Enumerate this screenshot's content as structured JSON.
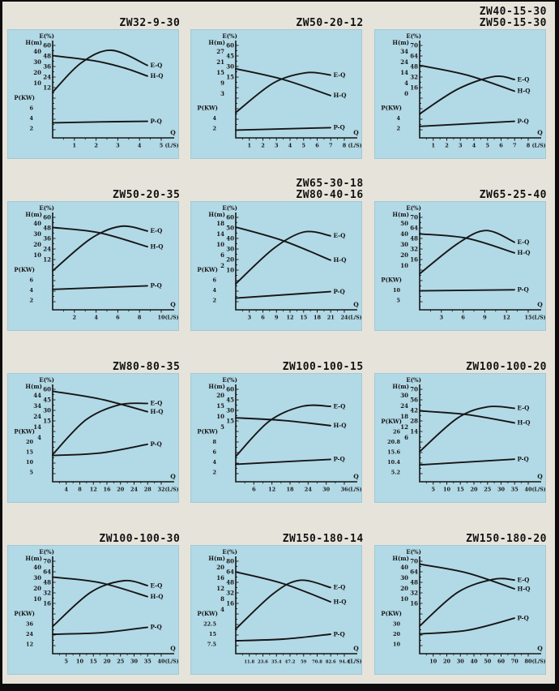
{
  "page": {
    "background": "#e6e4da",
    "panel_color": "#b2d9e6",
    "ink_color": "#161616",
    "frame_color": "#0d0d0d",
    "series_note": "curve points are normalized: x = 0..1 of Q-axis span, y = 0..1 of plot height (bottom to top)"
  },
  "chart_data": [
    {
      "type": "line",
      "title_lines": [
        "ZW32-9-30"
      ],
      "e_axis": {
        "label": "E(%)",
        "ticks": [
          "60",
          "48",
          "36",
          "24",
          "12"
        ]
      },
      "h_axis": {
        "label": "H(m)",
        "ticks": [
          "40",
          "30",
          "20",
          "10"
        ]
      },
      "p_axis": {
        "label": "P(KW)",
        "ticks": [
          "6",
          "4",
          "2"
        ]
      },
      "x_axis": {
        "q": "Q",
        "unit": "(L/S)",
        "ticks": [
          "1",
          "2",
          "3",
          "4",
          "5"
        ]
      },
      "series": [
        {
          "name": "H-Q",
          "pts": [
            [
              0,
              0.845
            ],
            [
              0.45,
              0.79
            ],
            [
              0.75,
              0.72
            ],
            [
              1,
              0.635
            ]
          ]
        },
        {
          "name": "E-Q",
          "pts": [
            [
              0,
              0.47
            ],
            [
              0.3,
              0.77
            ],
            [
              0.62,
              0.9
            ],
            [
              1,
              0.745
            ]
          ]
        },
        {
          "name": "P-Q",
          "pts": [
            [
              0,
              0.155
            ],
            [
              0.55,
              0.165
            ],
            [
              1,
              0.17
            ]
          ]
        }
      ]
    },
    {
      "type": "line",
      "title_lines": [
        "ZW50-20-12"
      ],
      "e_axis": {
        "label": "E(%)",
        "ticks": [
          "60",
          "45",
          "30",
          "15"
        ]
      },
      "h_axis": {
        "label": "H(m)",
        "ticks": [
          "27",
          "21",
          "15",
          "9",
          "3"
        ]
      },
      "p_axis": {
        "label": "P(KW)",
        "ticks": [
          "4",
          "2"
        ]
      },
      "x_axis": {
        "q": "Q",
        "unit": "(L/S)",
        "ticks": [
          "1",
          "2",
          "3",
          "4",
          "5",
          "6",
          "7",
          "8"
        ]
      },
      "series": [
        {
          "name": "H-Q",
          "pts": [
            [
              0,
              0.71
            ],
            [
              0.5,
              0.6
            ],
            [
              1,
              0.435
            ]
          ]
        },
        {
          "name": "E-Q",
          "pts": [
            [
              0,
              0.26
            ],
            [
              0.4,
              0.565
            ],
            [
              0.75,
              0.67
            ],
            [
              1,
              0.645
            ]
          ]
        },
        {
          "name": "P-Q",
          "pts": [
            [
              0,
              0.08
            ],
            [
              1,
              0.105
            ]
          ]
        }
      ]
    },
    {
      "type": "line",
      "title_lines": [
        "ZW40-15-30",
        "ZW50-15-30"
      ],
      "e_axis": {
        "label": "E(%)",
        "ticks": [
          "70",
          "64",
          "48",
          "32",
          "16"
        ]
      },
      "h_axis": {
        "label": "H(m)",
        "ticks": [
          "34",
          "24",
          "14",
          "4",
          "0"
        ]
      },
      "p_axis": {
        "label": "P(KW)",
        "ticks": [
          "4",
          "2"
        ]
      },
      "x_axis": {
        "q": "Q",
        "unit": "(L/S)",
        "ticks": [
          "1",
          "2",
          "3",
          "4",
          "5",
          "6",
          "7",
          "8"
        ]
      },
      "series": [
        {
          "name": "H-Q",
          "pts": [
            [
              0,
              0.745
            ],
            [
              0.5,
              0.645
            ],
            [
              1,
              0.48
            ]
          ]
        },
        {
          "name": "E-Q",
          "pts": [
            [
              0,
              0.247
            ],
            [
              0.4,
              0.5
            ],
            [
              0.78,
              0.63
            ],
            [
              1,
              0.6
            ]
          ]
        },
        {
          "name": "P-Q",
          "pts": [
            [
              0,
              0.118
            ],
            [
              1,
              0.17
            ]
          ]
        }
      ]
    },
    {
      "type": "line",
      "title_lines": [
        "ZW50-20-35"
      ],
      "e_axis": {
        "label": "E(%)",
        "ticks": [
          "60",
          "48",
          "36",
          "24",
          "12"
        ]
      },
      "h_axis": {
        "label": "H(m)",
        "ticks": [
          "40",
          "30",
          "20",
          "10"
        ]
      },
      "p_axis": {
        "label": "P(KW)",
        "ticks": [
          "6",
          "4",
          "2"
        ]
      },
      "x_axis": {
        "q": "Q",
        "unit": "(L/S)",
        "ticks": [
          "2",
          "4",
          "6",
          "8",
          "10"
        ]
      },
      "series": [
        {
          "name": "H-Q",
          "pts": [
            [
              0,
              0.846
            ],
            [
              0.5,
              0.79
            ],
            [
              1,
              0.648
            ]
          ]
        },
        {
          "name": "E-Q",
          "pts": [
            [
              0,
              0.4
            ],
            [
              0.4,
              0.73
            ],
            [
              0.72,
              0.858
            ],
            [
              1,
              0.81
            ]
          ]
        },
        {
          "name": "P-Q",
          "pts": [
            [
              0,
              0.21
            ],
            [
              1,
              0.247
            ]
          ]
        }
      ]
    },
    {
      "type": "line",
      "title_lines": [
        "ZW65-30-18",
        "ZW80-40-16"
      ],
      "e_axis": {
        "label": "E(%)",
        "ticks": [
          "60",
          "50",
          "40",
          "30",
          "20",
          "10"
        ]
      },
      "h_axis": {
        "label": "H(m)",
        "ticks": [
          "18",
          "14",
          "10",
          "6",
          "2"
        ]
      },
      "p_axis": {
        "label": "P(KW)",
        "ticks": [
          "6",
          "4",
          "2"
        ]
      },
      "x_axis": {
        "q": "Q",
        "unit": "(L/S)",
        "ticks": [
          "3",
          "6",
          "9",
          "12",
          "15",
          "18",
          "21",
          "24"
        ]
      },
      "series": [
        {
          "name": "H-Q",
          "pts": [
            [
              0,
              0.85
            ],
            [
              0.5,
              0.71
            ],
            [
              1,
              0.51
            ]
          ]
        },
        {
          "name": "E-Q",
          "pts": [
            [
              0,
              0.267
            ],
            [
              0.4,
              0.63
            ],
            [
              0.72,
              0.8
            ],
            [
              1,
              0.76
            ]
          ]
        },
        {
          "name": "P-Q",
          "pts": [
            [
              0,
              0.12
            ],
            [
              1,
              0.187
            ]
          ]
        }
      ]
    },
    {
      "type": "line",
      "title_lines": [
        "ZW65-25-40"
      ],
      "e_axis": {
        "label": "E(%)",
        "ticks": [
          "70",
          "64",
          "48",
          "32",
          "16"
        ]
      },
      "h_axis": {
        "label": "H(m)",
        "ticks": [
          "50",
          "40",
          "30",
          "20",
          "10"
        ]
      },
      "p_axis": {
        "label": "P(KW)",
        "ticks": [
          "10",
          "5"
        ]
      },
      "x_axis": {
        "q": "Q",
        "unit": "(L/S)",
        "ticks": [
          "3",
          "6",
          "9",
          "12",
          "15"
        ]
      },
      "series": [
        {
          "name": "H-Q",
          "pts": [
            [
              0,
              0.78
            ],
            [
              0.5,
              0.735
            ],
            [
              1,
              0.585
            ]
          ]
        },
        {
          "name": "E-Q",
          "pts": [
            [
              0,
              0.37
            ],
            [
              0.4,
              0.68
            ],
            [
              0.7,
              0.815
            ],
            [
              1,
              0.695
            ]
          ]
        },
        {
          "name": "P-Q",
          "pts": [
            [
              0,
              0.195
            ],
            [
              1,
              0.206
            ]
          ]
        }
      ]
    },
    {
      "type": "line",
      "title_lines": [
        "ZW80-80-35"
      ],
      "e_axis": {
        "label": "E(%)",
        "ticks": [
          "60",
          "45",
          "30",
          "15"
        ]
      },
      "h_axis": {
        "label": "H(m)",
        "ticks": [
          "44",
          "34",
          "24",
          "14",
          "4"
        ]
      },
      "p_axis": {
        "label": "P(KW)",
        "ticks": [
          "20",
          "15",
          "10",
          "5"
        ]
      },
      "x_axis": {
        "q": "Q",
        "unit": "(L/S)",
        "ticks": [
          "4",
          "8",
          "12",
          "16",
          "20",
          "24",
          "28",
          "32"
        ]
      },
      "series": [
        {
          "name": "H-Q",
          "pts": [
            [
              0,
              0.93
            ],
            [
              0.5,
              0.85
            ],
            [
              1,
              0.72
            ]
          ]
        },
        {
          "name": "E-Q",
          "pts": [
            [
              0,
              0.28
            ],
            [
              0.35,
              0.635
            ],
            [
              0.7,
              0.79
            ],
            [
              1,
              0.805
            ]
          ]
        },
        {
          "name": "P-Q",
          "pts": [
            [
              0,
              0.27
            ],
            [
              0.5,
              0.295
            ],
            [
              1,
              0.385
            ]
          ]
        }
      ]
    },
    {
      "type": "line",
      "title_lines": [
        "ZW100-100-15"
      ],
      "e_axis": {
        "label": "E(%)",
        "ticks": [
          "60",
          "45",
          "30",
          "15"
        ]
      },
      "h_axis": {
        "label": "H(m)",
        "ticks": [
          "20",
          "15",
          "10",
          "5"
        ]
      },
      "p_axis": {
        "label": "P(KW)",
        "ticks": [
          "8",
          "6",
          "4",
          "2"
        ]
      },
      "x_axis": {
        "q": "Q",
        "unit": "(L/S)",
        "ticks": [
          "6",
          "12",
          "18",
          "24",
          "30",
          "36"
        ]
      },
      "series": [
        {
          "name": "H-Q",
          "pts": [
            [
              0,
              0.657
            ],
            [
              0.5,
              0.63
            ],
            [
              1,
              0.577
            ]
          ]
        },
        {
          "name": "E-Q",
          "pts": [
            [
              0,
              0.26
            ],
            [
              0.35,
              0.62
            ],
            [
              0.7,
              0.775
            ],
            [
              1,
              0.775
            ]
          ]
        },
        {
          "name": "P-Q",
          "pts": [
            [
              0,
              0.18
            ],
            [
              1,
              0.23
            ]
          ]
        }
      ]
    },
    {
      "type": "line",
      "title_lines": [
        "ZW100-100-20"
      ],
      "e_axis": {
        "label": "E(%)",
        "ticks": [
          "70",
          "56",
          "42",
          "28",
          "14"
        ]
      },
      "h_axis": {
        "label": "H(m)",
        "ticks": [
          "30",
          "24",
          "18",
          "12",
          "6"
        ]
      },
      "p_axis": {
        "label": "P(KW)",
        "ticks": [
          "26",
          "20.8",
          "15.6",
          "10.4",
          "5.2"
        ]
      },
      "x_axis": {
        "q": "Q",
        "unit": "(L/S)",
        "ticks": [
          "5",
          "10",
          "15",
          "20",
          "25",
          "30",
          "35",
          "40"
        ]
      },
      "series": [
        {
          "name": "H-Q",
          "pts": [
            [
              0,
              0.728
            ],
            [
              0.5,
              0.69
            ],
            [
              1,
              0.605
            ]
          ]
        },
        {
          "name": "E-Q",
          "pts": [
            [
              0,
              0.31
            ],
            [
              0.4,
              0.655
            ],
            [
              0.72,
              0.77
            ],
            [
              1,
              0.755
            ]
          ]
        },
        {
          "name": "P-Q",
          "pts": [
            [
              0,
              0.173
            ],
            [
              1,
              0.232
            ]
          ]
        }
      ]
    },
    {
      "type": "line",
      "title_lines": [
        "ZW100-100-30"
      ],
      "e_axis": {
        "label": "E(%)",
        "ticks": [
          "70",
          "64",
          "48",
          "32",
          "16"
        ]
      },
      "h_axis": {
        "label": "H(m)",
        "ticks": [
          "40",
          "30",
          "20",
          "10"
        ]
      },
      "p_axis": {
        "label": "P(KW)",
        "ticks": [
          "36",
          "24",
          "12"
        ]
      },
      "x_axis": {
        "q": "Q",
        "unit": "(L/S)",
        "ticks": [
          "5",
          "10",
          "15",
          "20",
          "25",
          "30",
          "35",
          "40"
        ]
      },
      "series": [
        {
          "name": "H-Q",
          "pts": [
            [
              0,
              0.787
            ],
            [
              0.5,
              0.73
            ],
            [
              1,
              0.587
            ]
          ]
        },
        {
          "name": "E-Q",
          "pts": [
            [
              0,
              0.28
            ],
            [
              0.4,
              0.63
            ],
            [
              0.75,
              0.75
            ],
            [
              1,
              0.7
            ]
          ]
        },
        {
          "name": "P-Q",
          "pts": [
            [
              0,
              0.2
            ],
            [
              0.5,
              0.215
            ],
            [
              1,
              0.272
            ]
          ]
        }
      ]
    },
    {
      "type": "line",
      "title_lines": [
        "ZW150-180-14"
      ],
      "e_axis": {
        "label": "E(%)",
        "ticks": [
          "80",
          "64",
          "48",
          "32",
          "16"
        ]
      },
      "h_axis": {
        "label": "H(m)",
        "ticks": [
          "20",
          "16",
          "12",
          "8",
          "4"
        ]
      },
      "p_axis": {
        "label": "P(KW)",
        "ticks": [
          "22.5",
          "15",
          "7.5"
        ]
      },
      "x_axis": {
        "q": "Q",
        "unit": "(L/S)",
        "ticks": [
          "11.8",
          "23.6",
          "35.4",
          "47.2",
          "59",
          "70.8",
          "82.6",
          "94.4"
        ]
      },
      "series": [
        {
          "name": "H-Q",
          "pts": [
            [
              0,
              0.84
            ],
            [
              0.5,
              0.72
            ],
            [
              1,
              0.533
            ]
          ]
        },
        {
          "name": "E-Q",
          "pts": [
            [
              0,
              0.253
            ],
            [
              0.4,
              0.62
            ],
            [
              0.68,
              0.755
            ],
            [
              1,
              0.68
            ]
          ]
        },
        {
          "name": "P-Q",
          "pts": [
            [
              0,
              0.133
            ],
            [
              0.5,
              0.15
            ],
            [
              1,
              0.2
            ]
          ]
        }
      ]
    },
    {
      "type": "line",
      "title_lines": [
        "ZW150-180-20"
      ],
      "e_axis": {
        "label": "E(%)",
        "ticks": [
          "70",
          "64",
          "48",
          "32",
          "16"
        ]
      },
      "h_axis": {
        "label": "H(m)",
        "ticks": [
          "40",
          "30",
          "20",
          "10"
        ]
      },
      "p_axis": {
        "label": "P(KW)",
        "ticks": [
          "30",
          "20",
          "10"
        ]
      },
      "x_axis": {
        "q": "Q",
        "unit": "(L/S)",
        "ticks": [
          "10",
          "20",
          "30",
          "40",
          "50",
          "60",
          "70",
          "80"
        ]
      },
      "series": [
        {
          "name": "H-Q",
          "pts": [
            [
              0,
              0.92
            ],
            [
              0.5,
              0.83
            ],
            [
              1,
              0.667
            ]
          ]
        },
        {
          "name": "E-Q",
          "pts": [
            [
              0,
              0.284
            ],
            [
              0.4,
              0.63
            ],
            [
              0.78,
              0.765
            ],
            [
              1,
              0.757
            ]
          ]
        },
        {
          "name": "P-Q",
          "pts": [
            [
              0,
              0.203
            ],
            [
              0.5,
              0.24
            ],
            [
              1,
              0.365
            ]
          ]
        }
      ]
    }
  ]
}
